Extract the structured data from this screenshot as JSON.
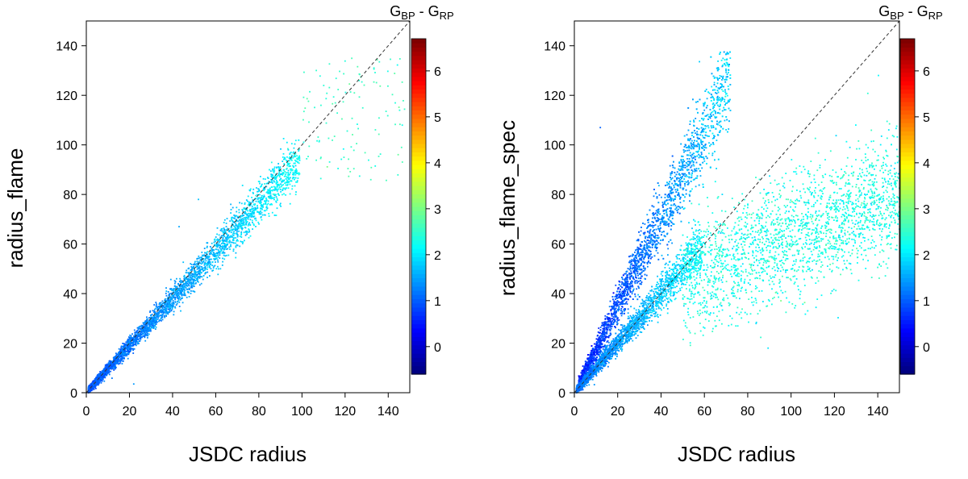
{
  "chart_data": [
    {
      "type": "scatter",
      "xlabel": "JSDC radius",
      "ylabel": "radius_flame",
      "xlim": [
        0,
        150
      ],
      "ylim": [
        0,
        150
      ],
      "x_ticks": [
        "0",
        "20",
        "40",
        "60",
        "80",
        "100",
        "120",
        "140"
      ],
      "y_ticks": [
        "0",
        "20",
        "40",
        "60",
        "80",
        "100",
        "120",
        "140"
      ],
      "reference_line": "y = x (dashed)",
      "colorbar": {
        "title_main": "G",
        "title_sub1": "BP",
        "title_mid": " - G",
        "title_sub2": "RP",
        "range": [
          -0.6,
          6.7
        ],
        "ticks": [
          "0",
          "1",
          "2",
          "3",
          "4",
          "5",
          "6"
        ],
        "colormap": [
          "#00007f",
          "#0000ff",
          "#007fff",
          "#00ffff",
          "#7fff7f",
          "#ffff00",
          "#ff7f00",
          "#ff0000",
          "#7f0000"
        ]
      },
      "point_groups": [
        {
          "description": "tight relation along the 1:1 line",
          "x_range": [
            1,
            100
          ],
          "y_relation": "y ≈ 0.95·x",
          "color_value_range": [
            0.8,
            2.4
          ]
        },
        {
          "description": "sparse large-radius tail",
          "x_range": [
            100,
            150
          ],
          "y_range": [
            85,
            135
          ],
          "color_value_range": [
            2.4,
            3.0
          ]
        }
      ]
    },
    {
      "type": "scatter",
      "xlabel": "JSDC radius",
      "ylabel": "radius_flame_spec",
      "xlim": [
        0,
        150
      ],
      "ylim": [
        0,
        150
      ],
      "x_ticks": [
        "0",
        "20",
        "40",
        "60",
        "80",
        "100",
        "120",
        "140"
      ],
      "y_ticks": [
        "0",
        "20",
        "40",
        "60",
        "80",
        "100",
        "120",
        "140"
      ],
      "reference_line": "y = x (dashed)",
      "colorbar": {
        "title_main": "G",
        "title_sub1": "BP",
        "title_mid": " - G",
        "title_sub2": "RP",
        "range": [
          -0.6,
          6.7
        ],
        "ticks": [
          "0",
          "1",
          "2",
          "3",
          "4",
          "5",
          "6"
        ],
        "colormap": [
          "#00007f",
          "#0000ff",
          "#007fff",
          "#00ffff",
          "#7fff7f",
          "#ffff00",
          "#ff7f00",
          "#ff0000",
          "#7f0000"
        ]
      },
      "point_groups": [
        {
          "description": "steep overestimating branch",
          "x_range": [
            2,
            75
          ],
          "y_relation": "y ≈ 1.7·x (up to ~135)",
          "color_value_range": [
            0.4,
            2.0
          ]
        },
        {
          "description": "main branch near 1:1",
          "x_range": [
            1,
            60
          ],
          "y_relation": "y ≈ x",
          "color_value_range": [
            1.0,
            2.2
          ]
        },
        {
          "description": "underestimating cloud",
          "x_range": [
            50,
            150
          ],
          "y_range": [
            40,
            110
          ],
          "color_value_range": [
            2.2,
            3.0
          ]
        }
      ]
    }
  ]
}
